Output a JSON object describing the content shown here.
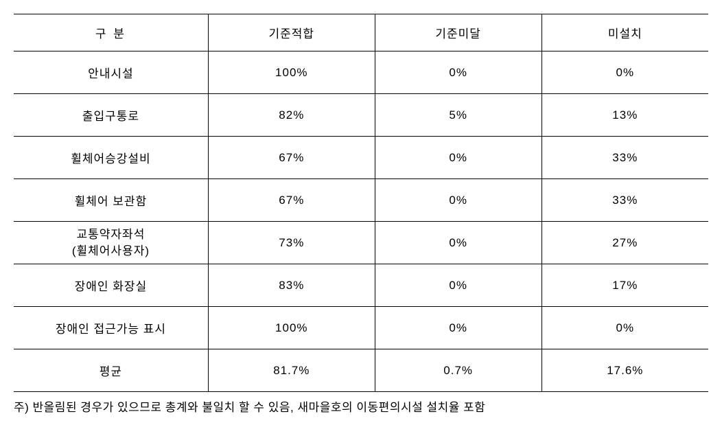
{
  "table": {
    "headers": {
      "category": "구 분",
      "col1": "기준적합",
      "col2": "기준미달",
      "col3": "미설치"
    },
    "rows": [
      {
        "category": "안내시설",
        "col1": "100%",
        "col2": "0%",
        "col3": "0%",
        "twoLine": false
      },
      {
        "category": "출입구통로",
        "col1": "82%",
        "col2": "5%",
        "col3": "13%",
        "twoLine": false
      },
      {
        "category": "휠체어승강설비",
        "col1": "67%",
        "col2": "0%",
        "col3": "33%",
        "twoLine": false
      },
      {
        "category": "휠체어 보관함",
        "col1": "67%",
        "col2": "0%",
        "col3": "33%",
        "twoLine": false
      },
      {
        "category": "교통약자좌석",
        "categoryLine2": "(휠체어사용자)",
        "col1": "73%",
        "col2": "0%",
        "col3": "27%",
        "twoLine": true
      },
      {
        "category": "장애인 화장실",
        "col1": "83%",
        "col2": "0%",
        "col3": "17%",
        "twoLine": false
      },
      {
        "category": "장애인 접근가능 표시",
        "col1": "100%",
        "col2": "0%",
        "col3": "0%",
        "twoLine": false
      },
      {
        "category": "평균",
        "col1": "81.7%",
        "col2": "0.7%",
        "col3": "17.6%",
        "twoLine": false
      }
    ]
  },
  "footnote": "주) 반올림된 경우가 있으므로 총계와 불일치 할 수 있음, 새마을호의 이동편의시설 설치율 포함"
}
